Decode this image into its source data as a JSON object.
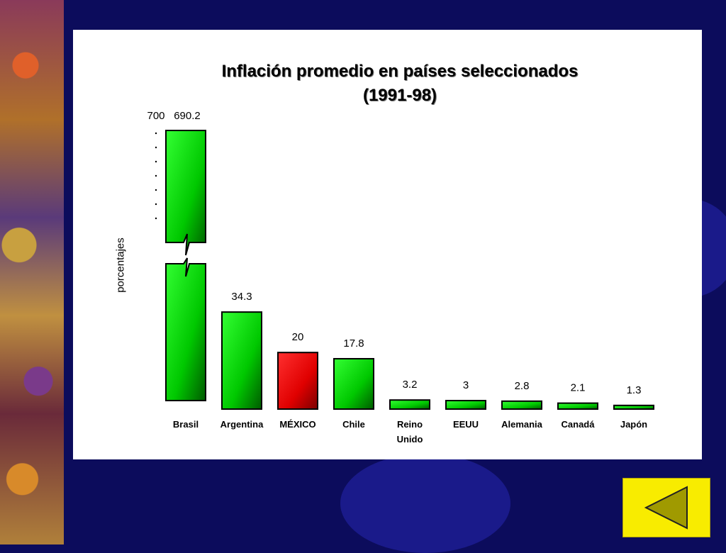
{
  "slide": {
    "back_button_icon": "triangle-left-icon",
    "accent_colors": {
      "background": "#0c0c5c",
      "panel": "#ffffff",
      "button": "#f8ec00"
    }
  },
  "chart_data": {
    "type": "bar",
    "title_lines": [
      "Inflación promedio en países seleccionados",
      "(1991-98)"
    ],
    "xlabel": "",
    "ylabel": "porcentajes",
    "categories": [
      "Brasil",
      "Argentina",
      "MÉXICO",
      "Chile",
      "Reino Unido",
      "EEUU",
      "Alemania",
      "Canadá",
      "Japón"
    ],
    "category_lines": [
      [
        "Brasil"
      ],
      [
        "Argentina"
      ],
      [
        "MÉXICO"
      ],
      [
        "Chile"
      ],
      [
        "Reino",
        "Unido"
      ],
      [
        "EEUU"
      ],
      [
        "Alemania"
      ],
      [
        "Canadá"
      ],
      [
        "Japón"
      ]
    ],
    "values": [
      690.2,
      34.3,
      20,
      17.8,
      3.2,
      3,
      2.8,
      2.1,
      1.3
    ],
    "value_labels": [
      "690.2",
      "34.3",
      "20",
      "17.8",
      "3.2",
      "3",
      "2.8",
      "2.1",
      "1.3"
    ],
    "highlight_category": "MÉXICO",
    "colors": {
      "default": "#00e000",
      "highlight": "#ee0000"
    },
    "axis_break": {
      "top_tick_label": "700",
      "broken_category": "Brasil"
    },
    "grid": false,
    "legend": "none"
  }
}
